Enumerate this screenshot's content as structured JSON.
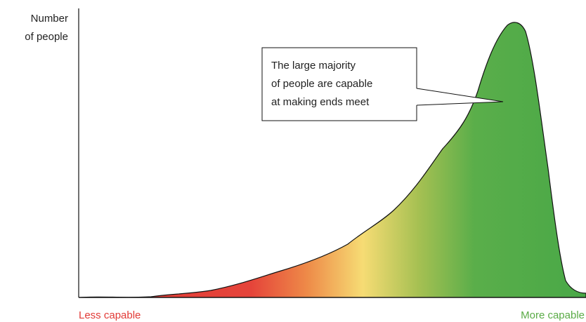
{
  "y_axis_label": [
    "Number",
    "of people"
  ],
  "x_axis_labels": {
    "left": "Less capable",
    "right": "More capable"
  },
  "callout": [
    "The large majority",
    "of people are capable",
    "at making ends meet"
  ]
}
